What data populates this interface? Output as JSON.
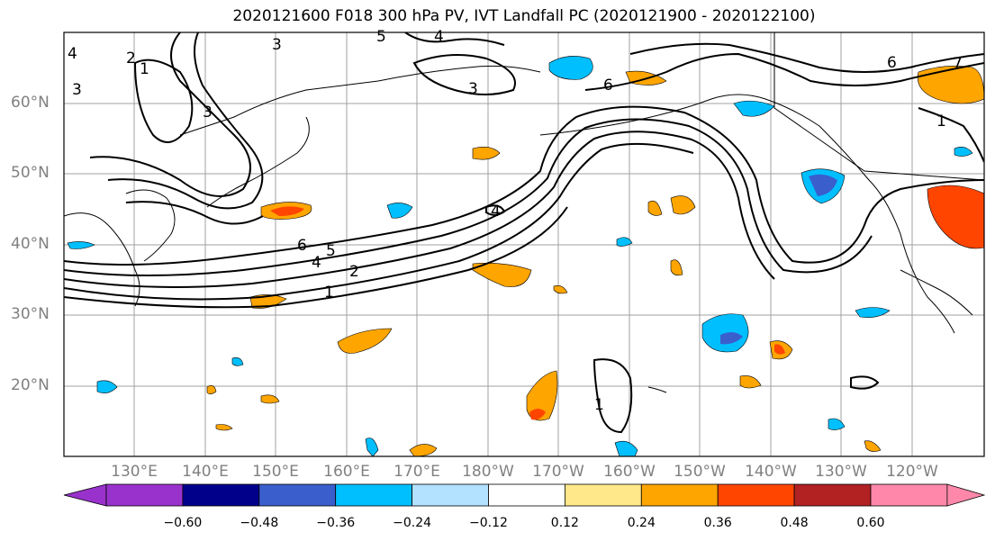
{
  "title": "2020121600 F018 300 hPa PV, IVT Landfall PC (2020121900 - 2020122100)",
  "map": {
    "lat_labels": [
      "60°N",
      "50°N",
      "40°N",
      "30°N",
      "20°N"
    ],
    "lon_labels": [
      "130°E",
      "140°E",
      "150°E",
      "160°E",
      "170°E",
      "180°W",
      "170°W",
      "160°W",
      "150°W",
      "140°W",
      "130°W",
      "120°W"
    ],
    "contour_labels": [
      "1",
      "2",
      "3",
      "4",
      "5",
      "6",
      "7"
    ]
  },
  "colorbar": {
    "tick_labels": [
      "−0.60",
      "−0.48",
      "−0.36",
      "−0.24",
      "−0.12",
      "0.12",
      "0.24",
      "0.36",
      "0.48",
      "0.60"
    ],
    "colors": [
      "#9932cc",
      "#00008b",
      "#3a5fcd",
      "#00bfff",
      "#b2e2ff",
      "#ffffff",
      "#ffe88a",
      "#ffa500",
      "#ff4500",
      "#b22222",
      "#ff88aa"
    ]
  }
}
